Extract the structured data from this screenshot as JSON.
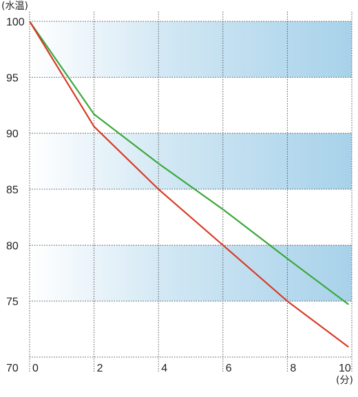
{
  "chart_data": {
    "type": "line",
    "y_unit_label": "(水温)",
    "x_unit_label": "(分)",
    "x_ticks": [
      0,
      2,
      4,
      6,
      8,
      10
    ],
    "y_ticks": [
      70,
      75,
      80,
      85,
      90,
      95,
      100
    ],
    "xlim": [
      0,
      10
    ],
    "ylim": [
      70,
      100
    ],
    "shaded_bands": [
      [
        95,
        100
      ],
      [
        85,
        90
      ],
      [
        75,
        80
      ]
    ],
    "grid": "dotted",
    "colors": {
      "band": "#a8d2ea",
      "grid": "#555555",
      "green": "#3aa83a",
      "red": "#d93a25"
    },
    "series": [
      {
        "color": "green",
        "x": [
          0,
          2,
          4,
          6,
          8,
          9.9
        ],
        "y": [
          100,
          91.7,
          87.3,
          83.2,
          78.8,
          74.7
        ]
      },
      {
        "color": "red",
        "x": [
          0,
          2,
          4,
          6,
          8,
          9.9
        ],
        "y": [
          100,
          90.6,
          85.0,
          80.0,
          75.0,
          70.9
        ]
      }
    ]
  }
}
